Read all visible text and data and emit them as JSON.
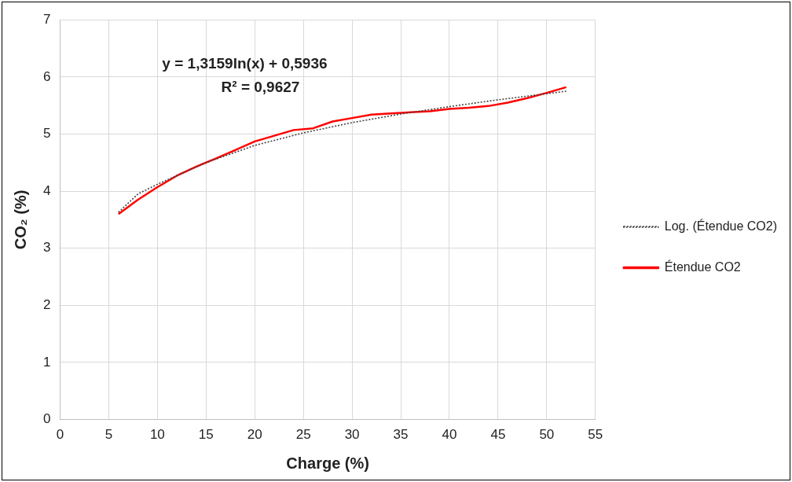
{
  "chart_data": {
    "type": "line",
    "xlabel": "Charge (%)",
    "ylabel": "CO₂ (%)",
    "xlim": [
      0,
      55
    ],
    "xticks": [
      0,
      5,
      10,
      15,
      20,
      25,
      30,
      35,
      40,
      45,
      50,
      55
    ],
    "ylim": [
      0,
      7
    ],
    "yticks": [
      0,
      1,
      2,
      3,
      4,
      5,
      6,
      7
    ],
    "grid": true,
    "legend": "right",
    "marker": "none",
    "annotations": [
      "y = 1,3159ln(x) + 0,5936",
      "R² = 0,9627"
    ],
    "series": [
      {
        "name": "Étendue CO2",
        "color": "#ff0000",
        "line_style": "solid",
        "x": [
          6,
          8,
          10,
          12,
          14,
          16,
          18,
          20,
          22,
          24,
          26,
          28,
          30,
          32,
          34,
          36,
          38,
          40,
          42,
          44,
          46,
          48,
          50,
          52
        ],
        "values": [
          3.6,
          3.85,
          4.07,
          4.27,
          4.43,
          4.57,
          4.72,
          4.87,
          4.97,
          5.07,
          5.1,
          5.22,
          5.28,
          5.34,
          5.36,
          5.38,
          5.4,
          5.44,
          5.46,
          5.49,
          5.55,
          5.63,
          5.72,
          5.82
        ]
      },
      {
        "name": "Log. (Étendue CO2)",
        "color": "#404040",
        "line_style": "dotted",
        "x": [
          6,
          8,
          10,
          15,
          20,
          25,
          30,
          35,
          40,
          45,
          52
        ],
        "values": [
          3.63,
          3.95,
          4.12,
          4.5,
          4.8,
          5.02,
          5.2,
          5.35,
          5.48,
          5.6,
          5.75
        ]
      }
    ]
  }
}
